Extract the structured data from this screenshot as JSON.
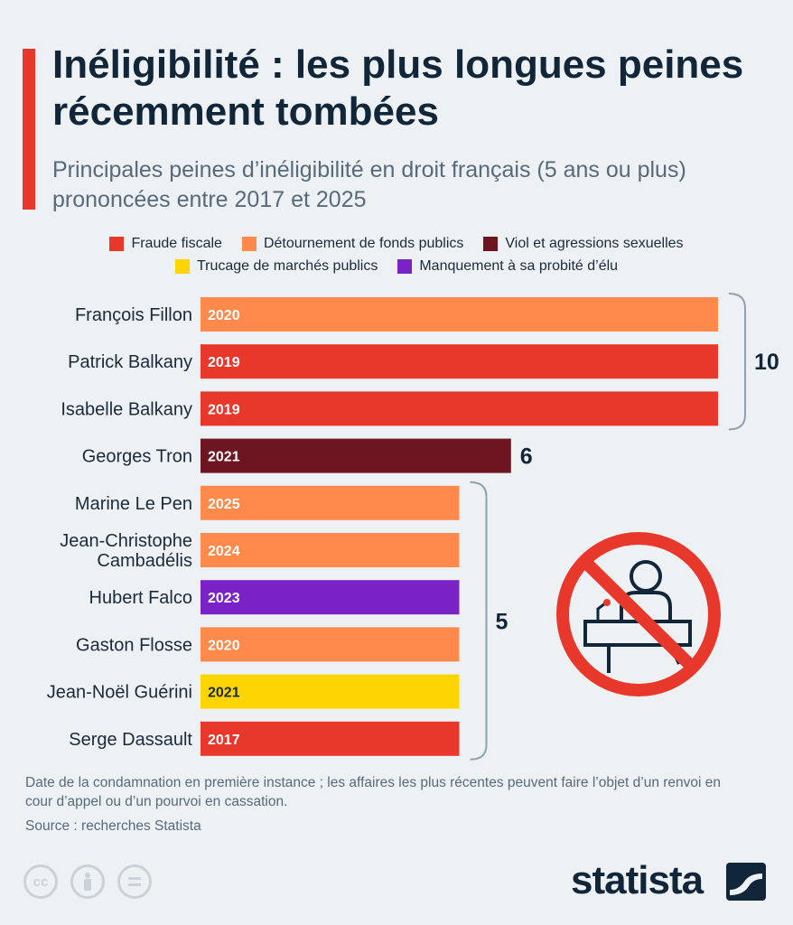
{
  "header": {
    "title": "Inéligibilité : les plus longues peines récemment tombées",
    "subtitle": "Principales peines d’inéligibilité en droit français (5 ans ou plus) prononcées entre 2017 et 2025"
  },
  "chart_data": {
    "type": "bar",
    "orientation": "horizontal",
    "legend": [
      {
        "name": "Fraude fiscale",
        "color": "#e8382c"
      },
      {
        "name": "Détournement de fonds publics",
        "color": "#ff8a4c"
      },
      {
        "name": "Viol et agressions sexuelles",
        "color": "#6d1622"
      },
      {
        "name": "Trucage de marchés publics",
        "color": "#ffd500"
      },
      {
        "name": "Manquement à sa probité d’élu",
        "color": "#7b22c7"
      }
    ],
    "bars": [
      {
        "label": "François Fillon",
        "value": 10,
        "year": "2020",
        "category": 1
      },
      {
        "label": "Patrick Balkany",
        "value": 10,
        "year": "2019",
        "category": 0
      },
      {
        "label": "Isabelle Balkany",
        "value": 10,
        "year": "2019",
        "category": 0
      },
      {
        "label": "Georges Tron",
        "value": 6,
        "year": "2021",
        "category": 2
      },
      {
        "label": "Marine Le Pen",
        "value": 5,
        "year": "2025",
        "category": 1
      },
      {
        "label": "Jean-Christophe Cambadélis",
        "value": 5,
        "year": "2024",
        "category": 1
      },
      {
        "label": "Hubert Falco",
        "value": 5,
        "year": "2023",
        "category": 4
      },
      {
        "label": "Gaston Flosse",
        "value": 5,
        "year": "2020",
        "category": 1
      },
      {
        "label": "Jean-Noël Guérini",
        "value": 5,
        "year": "2021",
        "category": 3
      },
      {
        "label": "Serge Dassault",
        "value": 5,
        "year": "2017",
        "category": 0
      }
    ],
    "group_labels": [
      {
        "text": "10",
        "from": 0,
        "to": 2
      },
      {
        "text": "6",
        "from": 3,
        "to": 3
      },
      {
        "text": "5",
        "from": 4,
        "to": 9
      }
    ],
    "xlim": [
      0,
      10
    ]
  },
  "footer": {
    "note": "Date de la condamnation en première instance ; les affaires les plus récentes peuvent faire l’objet d’un renvoi en cour d’appel ou d’un pourvoi en cassation.",
    "source": "Source : recherches Statista",
    "brand": "statista",
    "license_icons": [
      "cc-icon",
      "person-icon",
      "equals-icon"
    ]
  },
  "illustration": "no-speaker-icon"
}
